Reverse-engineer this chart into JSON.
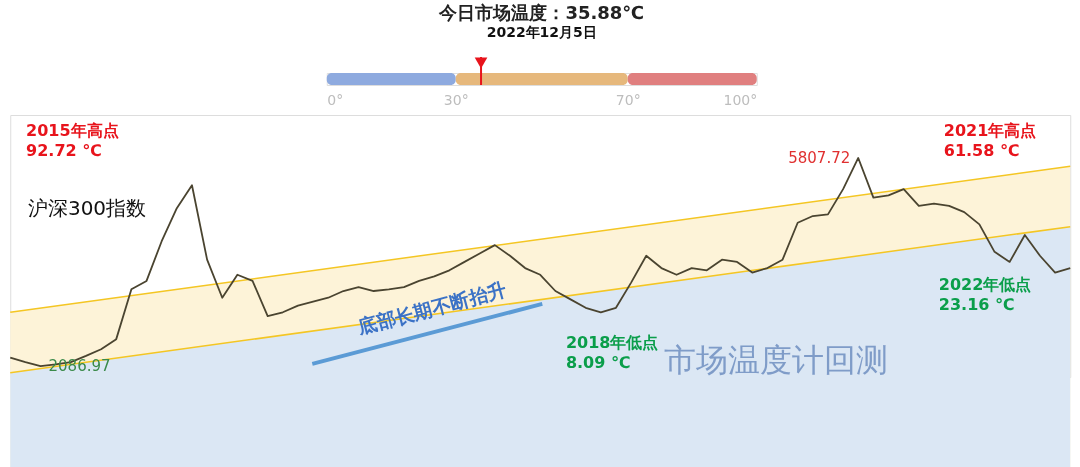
{
  "chart_data": [
    {
      "type": "bar",
      "orientation": "horizontal",
      "stacked": true,
      "title": "今日市场温度：35.88℃",
      "subtitle": "2022年12月5日",
      "categories": [
        null
      ],
      "series": [
        {
          "color": "#8eaadf",
          "values": [
            30
          ]
        },
        {
          "color": "#e6b87c",
          "values": [
            40
          ]
        },
        {
          "color": "#e07f7f",
          "values": [
            30
          ]
        }
      ],
      "xlim": [
        0,
        100
      ],
      "xticks": [
        {
          "value": 0,
          "label": "0°"
        },
        {
          "value": 30,
          "label": "30°"
        },
        {
          "value": 70,
          "label": "70°"
        },
        {
          "value": 100,
          "label": "100°"
        }
      ],
      "ref_lines": [
        {
          "axis": "x",
          "value": 35.88,
          "color": "#e8141c"
        }
      ],
      "tick_labels": "x"
    },
    {
      "type": "line",
      "tick_labels": false,
      "categories": [
        null,
        null,
        null,
        null,
        null,
        null,
        null,
        null,
        null,
        null,
        null,
        null,
        null,
        null,
        null,
        null,
        null,
        null,
        null,
        null,
        null,
        null,
        null,
        null,
        null,
        null,
        null,
        null,
        null,
        null,
        null,
        null,
        null,
        null,
        null,
        null,
        null,
        null,
        null,
        null,
        null,
        null,
        null,
        null,
        null,
        null,
        null,
        null,
        null,
        null,
        null,
        null,
        null,
        null,
        null,
        null,
        null,
        null,
        null,
        null,
        null,
        null,
        null,
        null,
        null,
        null,
        null,
        null,
        null,
        null,
        null
      ],
      "series": [
        {
          "type": "area",
          "color": "#fdf3d8",
          "values": [
            3050,
            null,
            null,
            null,
            null,
            null,
            null,
            null,
            null,
            null,
            null,
            null,
            null,
            null,
            null,
            null,
            null,
            null,
            null,
            null,
            null,
            null,
            null,
            null,
            null,
            null,
            null,
            null,
            null,
            null,
            null,
            null,
            null,
            null,
            null,
            null,
            null,
            null,
            null,
            null,
            null,
            null,
            null,
            null,
            null,
            null,
            null,
            null,
            null,
            null,
            null,
            null,
            null,
            null,
            null,
            null,
            null,
            null,
            null,
            null,
            null,
            null,
            null,
            null,
            null,
            null,
            null,
            null,
            null,
            null,
            5660
          ]
        },
        {
          "type": "area",
          "color": "#dbe7f4",
          "values": [
            1970,
            null,
            null,
            null,
            null,
            null,
            null,
            null,
            null,
            null,
            null,
            null,
            null,
            null,
            null,
            null,
            null,
            null,
            null,
            null,
            null,
            null,
            null,
            null,
            null,
            null,
            null,
            null,
            null,
            null,
            null,
            null,
            null,
            null,
            null,
            null,
            null,
            null,
            null,
            null,
            null,
            null,
            null,
            null,
            null,
            null,
            null,
            null,
            null,
            null,
            null,
            null,
            null,
            null,
            null,
            null,
            null,
            null,
            null,
            null,
            null,
            null,
            null,
            null,
            null,
            null,
            null,
            null,
            null,
            null,
            4580
          ]
        },
        {
          "type": "line",
          "name": "沪深300指数",
          "color": "#4a4430",
          "values": [
            2240,
            2160,
            2086.97,
            2120,
            2160,
            2270,
            2390,
            2570,
            3460,
            3610,
            4320,
            4910,
            5320,
            3990,
            3310,
            3720,
            3610,
            2980,
            3050,
            3170,
            3240,
            3310,
            3430,
            3500,
            3430,
            3460,
            3500,
            3610,
            3690,
            3800,
            3950,
            4100,
            4250,
            4060,
            3840,
            3720,
            3430,
            3280,
            3130,
            3050,
            3130,
            3580,
            4060,
            3840,
            3720,
            3840,
            3800,
            3990,
            3950,
            3760,
            3840,
            3990,
            4650,
            4770,
            4800,
            5250,
            5807.72,
            5100,
            5140,
            5250,
            4950,
            4990,
            4950,
            4840,
            4620,
            4130,
            3950,
            4430,
            4060,
            3760,
            3840
          ],
          "value_labels": [
            null,
            null,
            "2086.97",
            null,
            null,
            null,
            null,
            null,
            null,
            null,
            null,
            null,
            null,
            null,
            null,
            null,
            null,
            null,
            null,
            null,
            null,
            null,
            null,
            null,
            null,
            null,
            null,
            null,
            null,
            null,
            null,
            null,
            null,
            null,
            null,
            null,
            null,
            null,
            null,
            null,
            null,
            null,
            null,
            null,
            null,
            null,
            null,
            null,
            null,
            null,
            null,
            null,
            null,
            null,
            null,
            null,
            "5807.72",
            null,
            null,
            null,
            null,
            null,
            null,
            null,
            null,
            null,
            null,
            null,
            null,
            null,
            null
          ]
        }
      ],
      "annotations": [
        "2015年高点\n92.72 ℃",
        "2021年高点\n61.58 ℃",
        "2018年低点\n8.09 ℃",
        "2022年低点\n23.16 ℃",
        "底部长期不断抬升",
        "市场温度计回测"
      ]
    }
  ]
}
